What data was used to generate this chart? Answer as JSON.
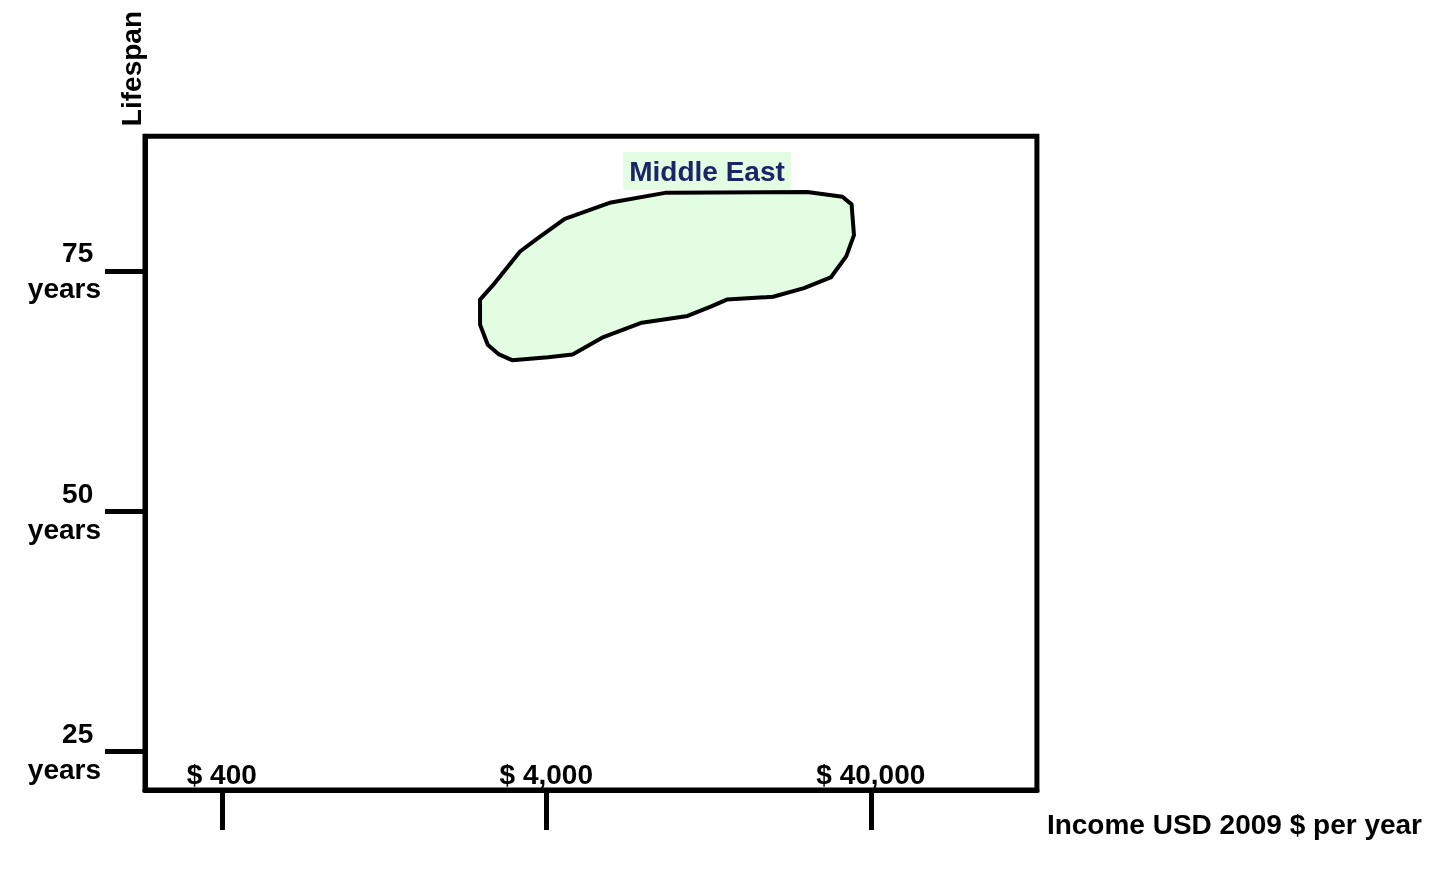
{
  "chart_data": {
    "type": "area",
    "xlabel": "Income USD 2009 $ per year",
    "ylabel": "Lifespan",
    "log": "x",
    "xlim": [
      232,
      130000
    ],
    "xticks": [
      {
        "value": 400,
        "label": "$ 400"
      },
      {
        "value": 4000,
        "label": "$ 4,000"
      },
      {
        "value": 40000,
        "label": "$ 40,000"
      }
    ],
    "ylim": [
      21,
      89
    ],
    "yticks": [
      {
        "value": 25,
        "label": "25 years"
      },
      {
        "value": 50,
        "label": "50 years"
      },
      {
        "value": 75,
        "label": "75 years"
      }
    ],
    "grid": false,
    "legend": false,
    "series": [
      {
        "name": "Middle East",
        "color": "#e2fde2",
        "x": [
          2500,
          2740,
          3320,
          3770,
          4560,
          6330,
          9290,
          25500,
          32700,
          34900,
          35500,
          33600,
          30100,
          24900,
          20000,
          14400,
          12900,
          10900,
          7880,
          6000,
          4820,
          4050,
          3140,
          2860,
          2640,
          2500
        ],
        "values": [
          72.0,
          73.5,
          77.0,
          78.4,
          80.4,
          82.1,
          83.1,
          83.2,
          82.7,
          81.9,
          78.7,
          76.5,
          74.3,
          73.2,
          72.3,
          72.0,
          71.3,
          70.3,
          69.6,
          68.1,
          66.3,
          66.0,
          65.7,
          66.3,
          67.3,
          69.4
        ]
      }
    ]
  }
}
